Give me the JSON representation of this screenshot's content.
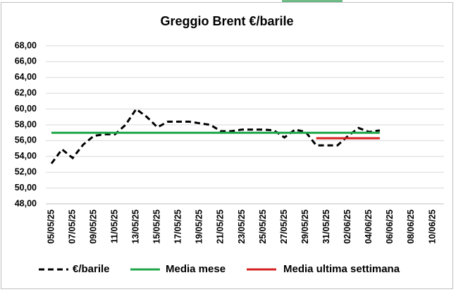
{
  "chart_data": {
    "type": "line",
    "title": "Greggio Brent €/barile",
    "categories": [
      "05/05/25",
      null,
      "07/05/25",
      null,
      "09/05/25",
      null,
      "11/05/25",
      null,
      "13/05/25",
      null,
      "15/05/25",
      null,
      "17/05/25",
      null,
      "19/05/25",
      null,
      "21/05/25",
      null,
      "23/05/25",
      null,
      "25/05/25",
      null,
      "27/05/25",
      null,
      "29/05/25",
      null,
      "31/05/25",
      null,
      "02/06/25",
      null,
      "04/06/25",
      null,
      "06/06/25",
      null,
      "08/06/25",
      null,
      "10/06/25"
    ],
    "series": [
      {
        "name": "€/barile",
        "color": "#000000",
        "dashed": true,
        "values": [
          53.1,
          54.9,
          53.8,
          55.5,
          56.6,
          56.8,
          56.8,
          58.0,
          60.0,
          59.0,
          57.7,
          58.4,
          58.4,
          58.4,
          58.2,
          58.0,
          57.2,
          57.2,
          57.4,
          57.4,
          57.4,
          57.3,
          56.4,
          57.4,
          57.1,
          55.4,
          55.4,
          55.4,
          56.6,
          57.6,
          57.1,
          57.3,
          null,
          null,
          null,
          null,
          null
        ]
      },
      {
        "name": "Media mese",
        "color": "#1fa64a",
        "dashed": false,
        "values": [
          57.0,
          57.0,
          57.0,
          57.0,
          57.0,
          57.0,
          57.0,
          57.0,
          57.0,
          57.0,
          57.0,
          57.0,
          57.0,
          57.0,
          57.0,
          57.0,
          57.0,
          57.0,
          57.0,
          57.0,
          57.0,
          57.0,
          57.0,
          57.0,
          57.0,
          57.0,
          57.0,
          57.0,
          57.0,
          57.0,
          57.0,
          57.0,
          null,
          null,
          null,
          null,
          null
        ]
      },
      {
        "name": "Media ultima settimana",
        "color": "#d62020",
        "dashed": false,
        "values": [
          null,
          null,
          null,
          null,
          null,
          null,
          null,
          null,
          null,
          null,
          null,
          null,
          null,
          null,
          null,
          null,
          null,
          null,
          null,
          null,
          null,
          null,
          null,
          null,
          null,
          56.3,
          56.3,
          56.3,
          56.3,
          56.3,
          56.3,
          56.3,
          null,
          null,
          null,
          null,
          null
        ]
      }
    ],
    "ylim": [
      48,
      68
    ],
    "yticks": [
      {
        "value": 48,
        "label": "48,00"
      },
      {
        "value": 50,
        "label": "50,00"
      },
      {
        "value": 52,
        "label": "52,00"
      },
      {
        "value": 54,
        "label": "54,00"
      },
      {
        "value": 56,
        "label": "56,00"
      },
      {
        "value": 58,
        "label": "58,00"
      },
      {
        "value": 60,
        "label": "60,00"
      },
      {
        "value": 62,
        "label": "62,00"
      },
      {
        "value": 64,
        "label": "64,00"
      },
      {
        "value": 66,
        "label": "66,00"
      },
      {
        "value": 68,
        "label": "68,00"
      }
    ],
    "grid": true,
    "legend": "bottom"
  }
}
